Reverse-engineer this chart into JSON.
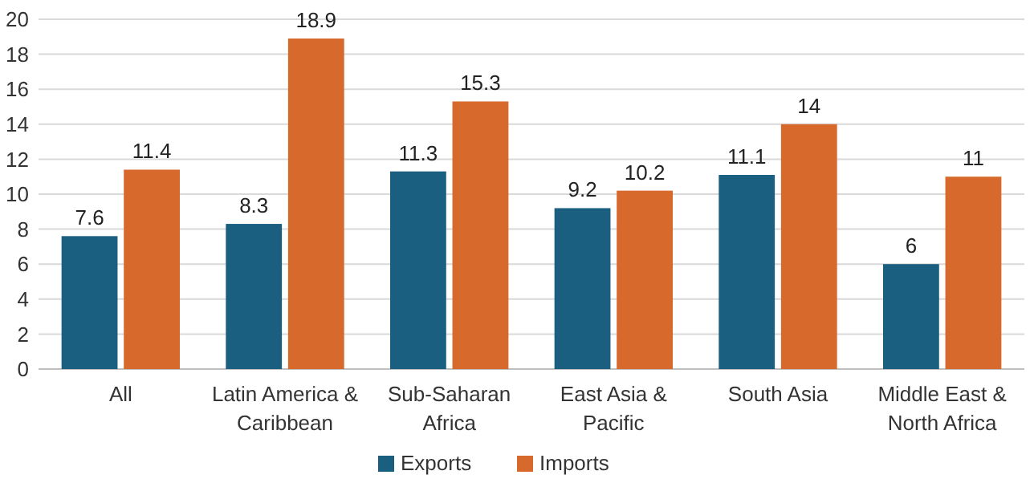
{
  "chart_data": {
    "type": "bar",
    "categories": [
      "All",
      "Latin America & Caribbean",
      "Sub-Saharan Africa",
      "East Asia & Pacific",
      "South Asia",
      "Middle East & North Africa"
    ],
    "series": [
      {
        "name": "Exports",
        "color": "#1b5f80",
        "values": [
          7.6,
          8.3,
          11.3,
          9.2,
          11.1,
          6
        ]
      },
      {
        "name": "Imports",
        "color": "#d6692b",
        "values": [
          11.4,
          18.9,
          15.3,
          10.2,
          14,
          11
        ]
      }
    ],
    "ylim": [
      0,
      20
    ],
    "yticks": [
      0,
      2,
      4,
      6,
      8,
      10,
      12,
      14,
      16,
      18,
      20
    ],
    "grid": "y",
    "legend": "bottom",
    "data_labels": true
  }
}
